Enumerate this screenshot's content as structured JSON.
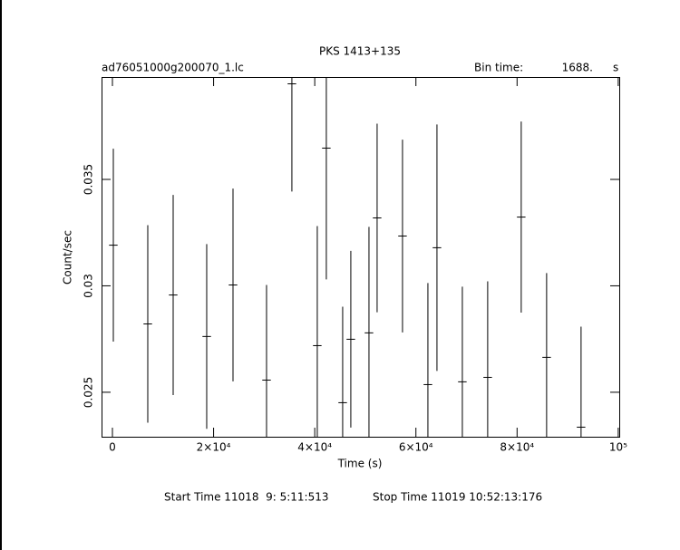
{
  "chart_data": {
    "type": "errorbar",
    "title": "PKS 1413+135",
    "file_label": "ad76051000g200070_1.lc",
    "bin_time_label": "Bin time:",
    "bin_time": {
      "value": 1688,
      "label": "1688."
    },
    "bin_time_unit": "s",
    "xlabel": "Time (s)",
    "ylabel": "Count/sec",
    "start_time": "Start Time 11018  9: 5:11:513",
    "stop_time": "Stop Time 11019 10:52:13:176",
    "x": [
      180,
      6990,
      12010,
      18640,
      23840,
      30470,
      35480,
      40500,
      42290,
      45520,
      47130,
      50720,
      52330,
      57350,
      62370,
      64160,
      69180,
      74190,
      80820,
      85840,
      92650
    ],
    "values": [
      0.03191,
      0.02821,
      0.02957,
      0.02762,
      0.03004,
      0.02557,
      0.03949,
      0.02719,
      0.03647,
      0.02451,
      0.02749,
      0.02779,
      0.03319,
      0.03234,
      0.02536,
      0.03179,
      0.02549,
      0.0257,
      0.03323,
      0.02664,
      0.02336
    ],
    "errors": [
      0.00453,
      0.00464,
      0.0047,
      0.00434,
      0.00453,
      0.00447,
      0.00506,
      0.00562,
      0.00617,
      0.00451,
      0.00415,
      0.00498,
      0.00443,
      0.00453,
      0.00477,
      0.00579,
      0.00447,
      0.00451,
      0.00449,
      0.00396,
      0.00472
    ],
    "color": "#000000",
    "xlim": [
      -2150,
      100200
    ],
    "ylim": [
      0.02291,
      0.03981
    ],
    "xticks": [
      0,
      {
        "value": 20000,
        "label": "2×10⁴"
      },
      {
        "value": 40000,
        "label": "4×10⁴"
      },
      {
        "value": 60000,
        "label": "6×10⁴"
      },
      {
        "value": 80000,
        "label": "8×10⁴"
      },
      {
        "value": 100000,
        "label": "10⁵"
      }
    ],
    "yticks": [
      0.025,
      0.03,
      0.035
    ]
  }
}
